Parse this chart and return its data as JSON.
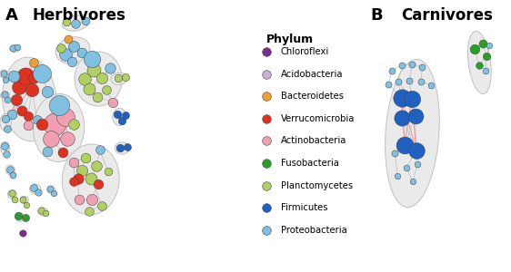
{
  "phylum_colors": {
    "Chloroflexi": "#7B2D8B",
    "Acidobacteria": "#C9AED8",
    "Bacteroidetes": "#F0A030",
    "Verrucomicrobia": "#E03020",
    "Actinobacteria": "#F0A0B0",
    "Fusobacteria": "#28A028",
    "Planctomycetes": "#B0D060",
    "Firmicutes": "#2060C0",
    "Proteobacteria": "#80C0E0"
  },
  "legend_title": "Phylum",
  "panel_A_label": "A",
  "panel_B_label": "B",
  "panel_A_title": "Herbivores",
  "panel_B_title": "Carnivores",
  "bg_color": "#ffffff",
  "phyla_order": [
    "Chloroflexi",
    "Acidobacteria",
    "Bacteroidetes",
    "Verrucomicrobia",
    "Actinobacteria",
    "Fusobacteria",
    "Planctomycetes",
    "Firmicutes",
    "Proteobacteria"
  ]
}
